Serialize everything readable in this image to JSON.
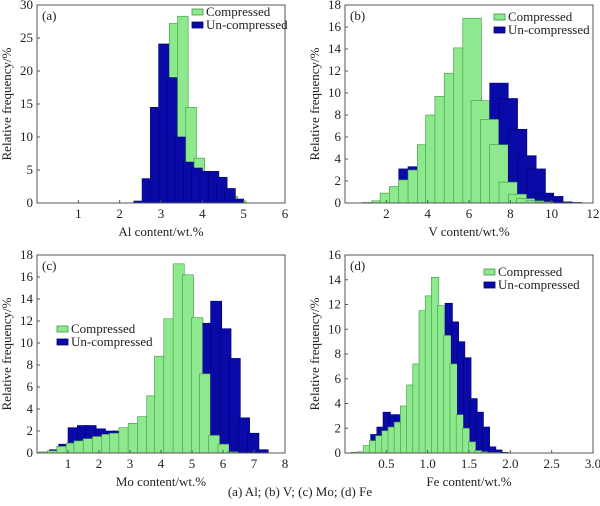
{
  "caption": "(a) Al; (b) V; (c) Mo; (d) Fe",
  "colors": {
    "compressed_fill": "#8ee88e",
    "compressed_stroke": "#3c9a3c",
    "uncompressed_fill": "#0a0aa8",
    "uncompressed_stroke": "#000070"
  },
  "chart_data": [
    {
      "type": "bar",
      "panel": "(a)",
      "xlabel": "Al content/wt.%",
      "ylabel": "Relative frequency/%",
      "xlim": [
        0,
        6
      ],
      "ylim": [
        0,
        30
      ],
      "xticks": [
        1,
        2,
        3,
        4,
        5,
        6
      ],
      "yticks": [
        0,
        5,
        10,
        15,
        20,
        25,
        30
      ],
      "legend": "top-right",
      "bin_centers": [
        2.6,
        2.8,
        3.0,
        3.2,
        3.4,
        3.6,
        3.8,
        4.0,
        4.2,
        4.4,
        4.6,
        4.8,
        5.0
      ],
      "series": [
        {
          "name": "Compressed",
          "values": [
            0,
            1.6,
            10.1,
            27.2,
            28.3,
            14.5,
            6.8,
            4.3,
            3.2,
            2.1,
            1.0,
            0.3,
            0
          ]
        },
        {
          "name": "Un-compressed",
          "values": [
            0.3,
            3.7,
            14.5,
            24.1,
            19.0,
            10.0,
            6.2,
            5.3,
            4.8,
            4.8,
            3.9,
            2.2,
            0.6
          ]
        }
      ]
    },
    {
      "type": "bar",
      "panel": "(b)",
      "xlabel": "V content/wt.%",
      "ylabel": "Relative frequency/%",
      "xlim": [
        0,
        12
      ],
      "ylim": [
        0,
        18
      ],
      "xticks": [
        2,
        4,
        6,
        8,
        10,
        12
      ],
      "yticks": [
        0,
        2,
        4,
        6,
        8,
        10,
        12,
        14,
        16,
        18
      ],
      "legend": "top-right",
      "bin_centers": [
        1.3,
        1.75,
        2.2,
        2.6,
        3.05,
        3.5,
        3.95,
        4.4,
        4.8,
        5.25,
        5.7,
        6.15,
        6.6,
        7.0,
        7.45,
        7.9,
        8.35,
        8.8,
        9.2,
        9.65,
        10.1,
        10.55
      ],
      "series": [
        {
          "name": "Compressed",
          "values": [
            0,
            0.05,
            0.2,
            0.9,
            1.5,
            2.1,
            3.0,
            5.3,
            8.0,
            9.7,
            11.8,
            14.1,
            16.8,
            9.3,
            7.6,
            5.3,
            1.9,
            0.8,
            0.4,
            0.2,
            0.1,
            0
          ]
        },
        {
          "name": "Un-compressed",
          "values": [
            0.05,
            0.7,
            1.1,
            3.1,
            3.3,
            3.8,
            4.2,
            4.4,
            6.6,
            7.5,
            9.6,
            9.1,
            8.9,
            10.9,
            9.5,
            6.7,
            4.3,
            3.1,
            0.9,
            0.6,
            0.1,
            0.05
          ]
        }
      ]
    },
    {
      "type": "bar",
      "panel": "(c)",
      "xlabel": "Mo content/wt.%",
      "ylabel": "Relative frequency/%",
      "xlim": [
        0,
        8
      ],
      "ylim": [
        0,
        18
      ],
      "xticks": [
        1,
        2,
        3,
        4,
        5,
        6,
        7,
        8
      ],
      "yticks": [
        0,
        2,
        4,
        6,
        8,
        10,
        12,
        14,
        16,
        18
      ],
      "legend": "middle-left",
      "bin_centers": [
        0.4,
        0.7,
        1.0,
        1.3,
        1.55,
        1.85,
        2.15,
        2.45,
        2.7,
        3.0,
        3.3,
        3.6,
        3.9,
        4.15,
        4.45,
        4.75,
        5.05,
        5.35,
        5.6,
        5.9,
        6.2,
        6.5,
        6.8,
        7.1
      ],
      "series": [
        {
          "name": "Compressed",
          "values": [
            0.1,
            0.2,
            0.6,
            0.9,
            1.1,
            1.3,
            1.5,
            1.7,
            1.8,
            2.3,
            2.7,
            3.3,
            5.2,
            8.8,
            12.2,
            17.2,
            16.2,
            12.3,
            7.2,
            1.6,
            0.8,
            0.1,
            0,
            0
          ]
        },
        {
          "name": "Un-compressed",
          "values": [
            0.3,
            0.8,
            2.3,
            2.5,
            2.5,
            2.2,
            2.0,
            2.0,
            2.1,
            2.2,
            2.2,
            2.3,
            2.5,
            3.4,
            4.0,
            5.4,
            9.3,
            11.8,
            13.8,
            11.3,
            8.6,
            3.2,
            1.8,
            0.3
          ]
        }
      ]
    },
    {
      "type": "bar",
      "panel": "(d)",
      "xlabel": "Fe content/wt.%",
      "ylabel": "Relative frequency/%",
      "xlim": [
        0,
        3.0
      ],
      "ylim": [
        0,
        16
      ],
      "xticks": [
        0.5,
        1.0,
        1.5,
        2.0,
        2.5,
        3.0
      ],
      "yticks": [
        0,
        2,
        4,
        6,
        8,
        10,
        12,
        14,
        16
      ],
      "xtick_labels": [
        "0.5",
        "1.0",
        "1.5",
        "2.0",
        "2.5",
        "3.0"
      ],
      "legend": "top-right",
      "bin_centers": [
        0.16,
        0.235,
        0.31,
        0.385,
        0.46,
        0.535,
        0.61,
        0.685,
        0.76,
        0.835,
        0.91,
        0.985,
        1.06,
        1.135,
        1.21,
        1.285,
        1.36,
        1.435,
        1.51,
        1.585,
        1.66,
        1.735,
        1.81,
        1.885,
        1.96,
        2.035
      ],
      "series": [
        {
          "name": "Compressed",
          "values": [
            0.05,
            0.1,
            0.6,
            1.0,
            1.4,
            1.8,
            2.1,
            2.5,
            3.8,
            5.5,
            7.2,
            11.5,
            12.7,
            14.2,
            11.9,
            9.5,
            7.2,
            3.1,
            2.0,
            0.9,
            0.2,
            0.1,
            0.05,
            0.05,
            0,
            0
          ]
        },
        {
          "name": "Un-compressed",
          "values": [
            0.05,
            0.15,
            1.5,
            2.1,
            3.3,
            3.1,
            3.1,
            3.3,
            3.0,
            2.9,
            4.1,
            5.0,
            6.5,
            11.2,
            12.1,
            10.6,
            9.0,
            7.7,
            4.4,
            3.3,
            2.1,
            0.5,
            0.25,
            0.05,
            0,
            0
          ]
        }
      ]
    }
  ]
}
